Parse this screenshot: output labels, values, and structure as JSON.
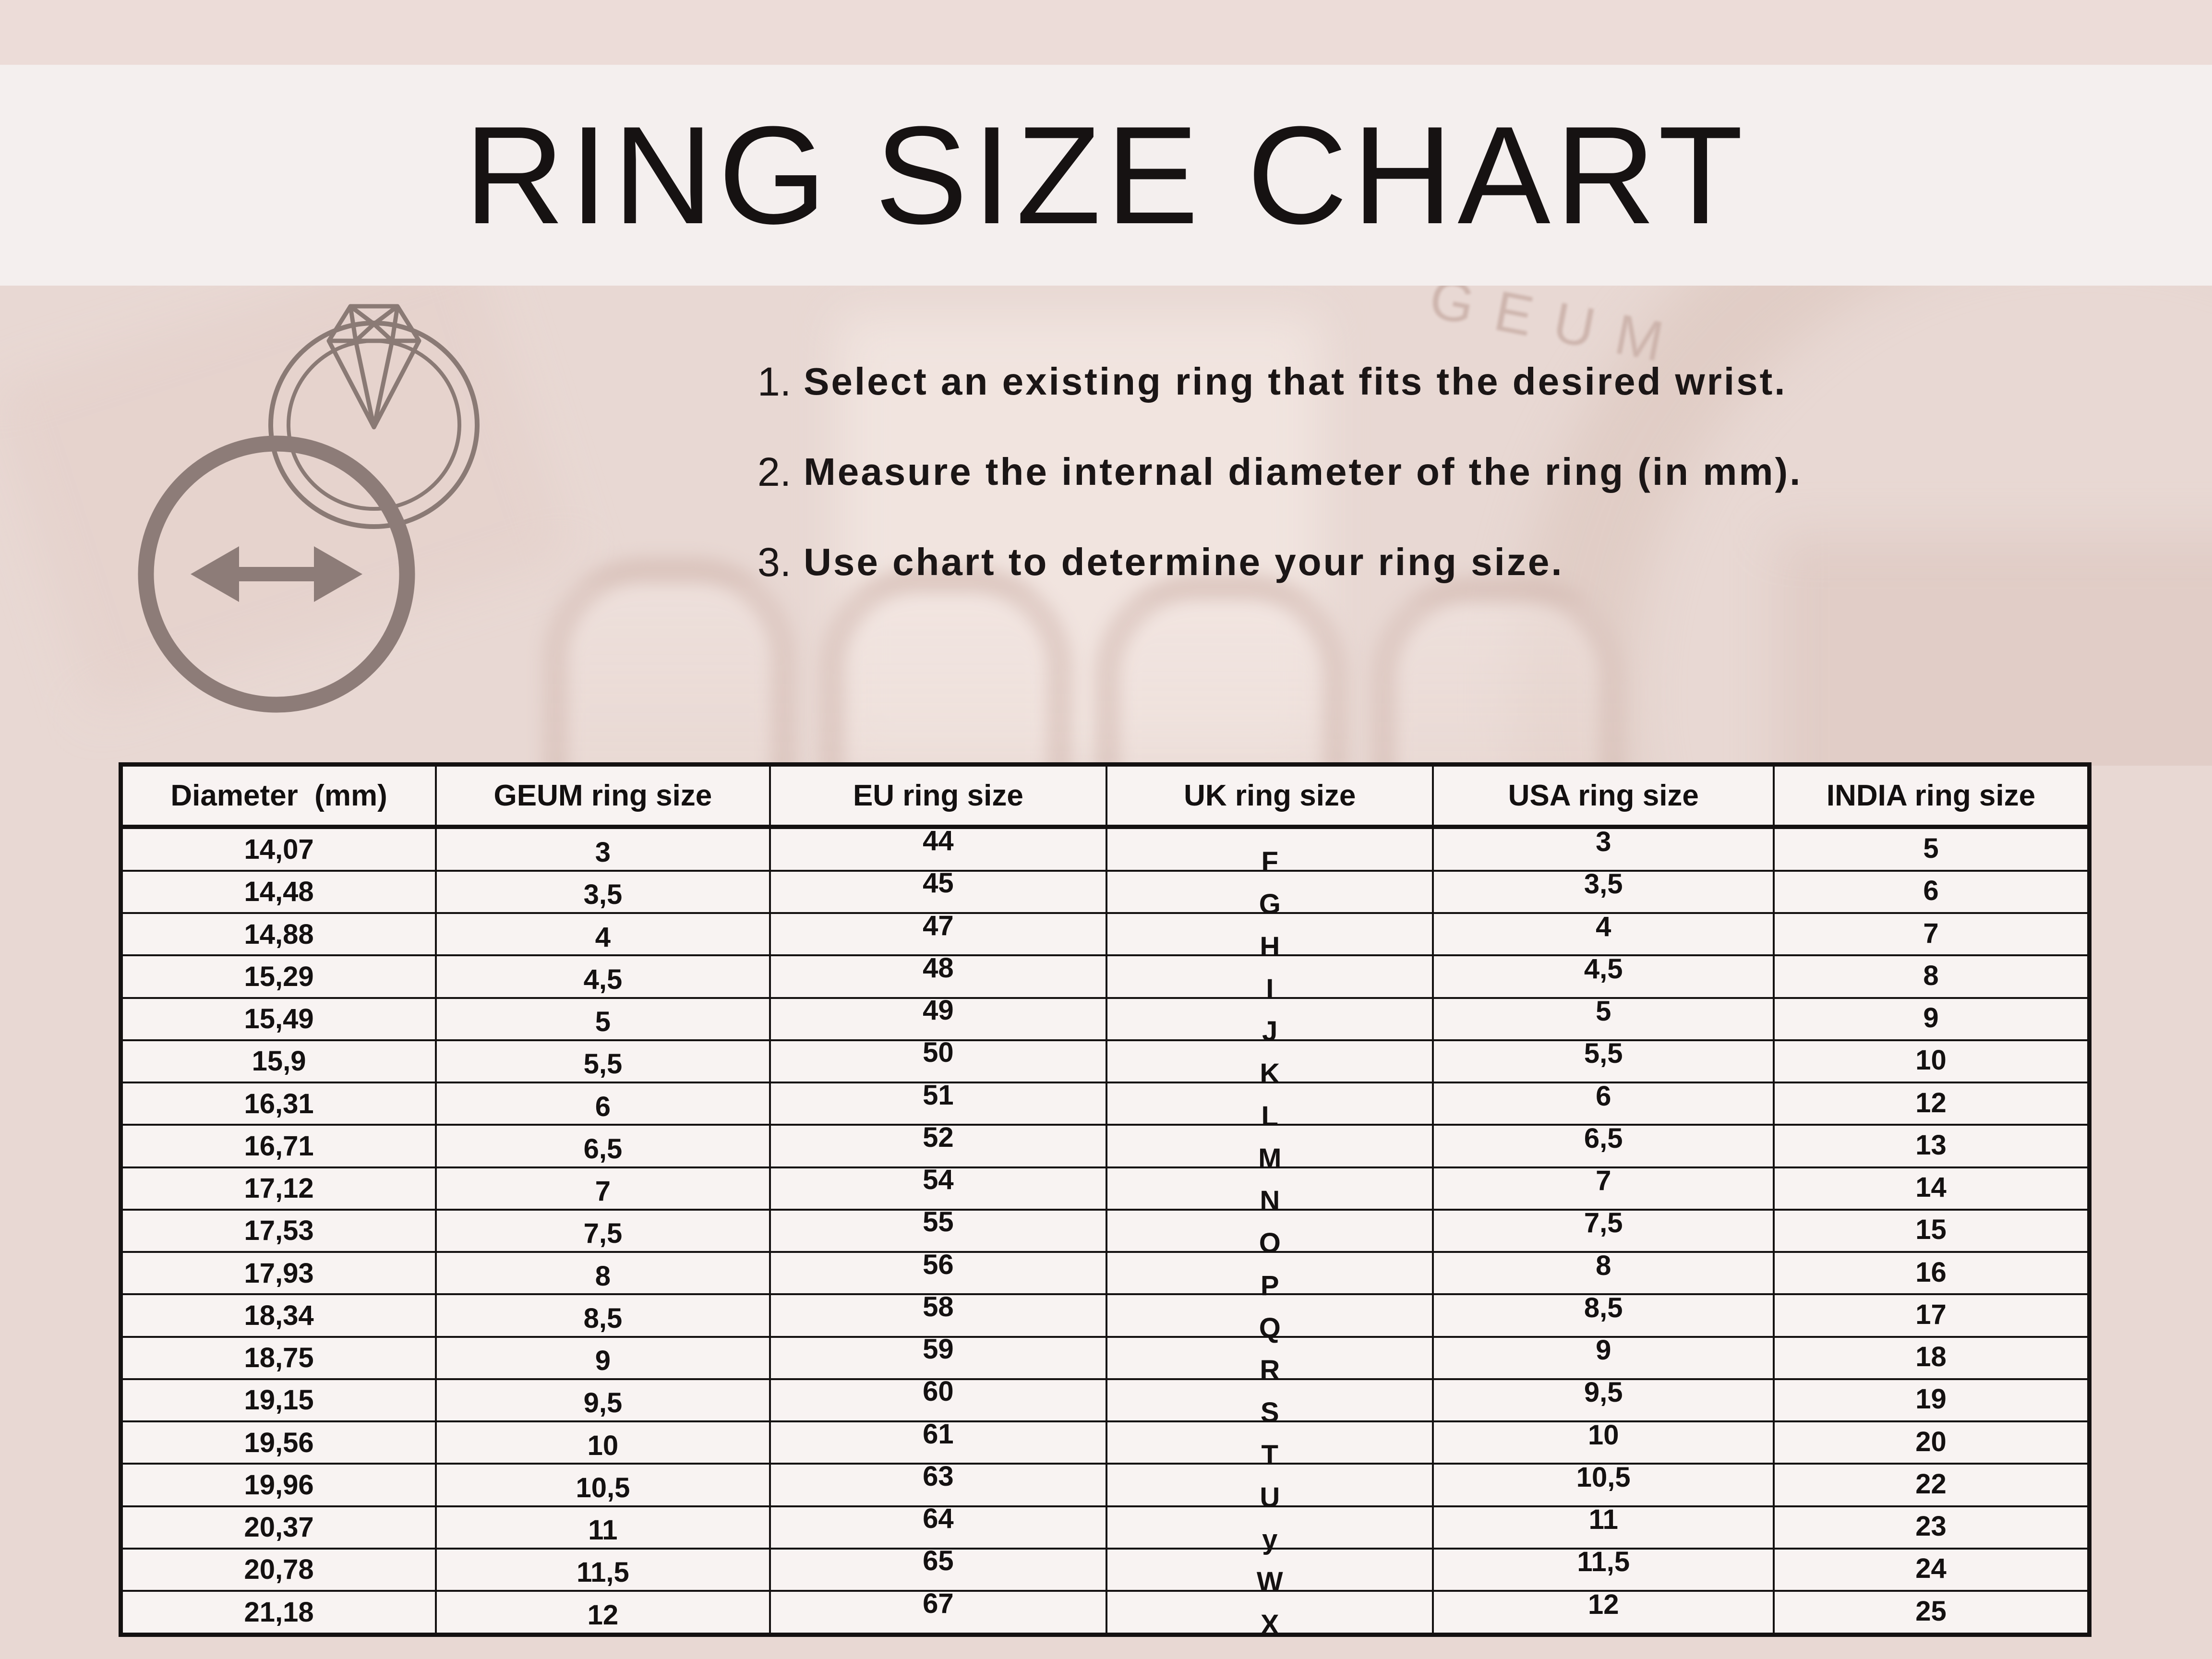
{
  "title": "RING SIZE CHART",
  "watermark": "GEUM",
  "instructions": [
    {
      "num": "1.",
      "text": "Select an existing ring that fits the desired wrist."
    },
    {
      "num": "2.",
      "text": "Measure the internal diameter of the ring (in mm)."
    },
    {
      "num": "3.",
      "text": "Use chart to determine your ring size."
    }
  ],
  "icons": [
    {
      "name": "diamond-ring-icon",
      "meaning": "outline of a ring with a diamond"
    },
    {
      "name": "diameter-circle-icon",
      "meaning": "circle representing the ring band"
    },
    {
      "name": "diameter-arrow-icon",
      "meaning": "double-headed arrow showing internal diameter measurement"
    }
  ],
  "colors": {
    "top_strip": "#ecdcd8",
    "title_band": "#f4efee",
    "page_background": "#e8d8d3",
    "table_background": "#f8f3f2",
    "table_border": "#141111",
    "text": "#171313",
    "icon": "#8d7c78",
    "watermark": "#c9afa7"
  },
  "table": {
    "columns": [
      "Diameter  (mm)",
      "GEUM ring size",
      "EU ring size",
      "UK ring size",
      "USA ring size",
      "INDIA ring size"
    ],
    "rows": [
      [
        "14,07",
        "3",
        "44",
        "F",
        "3",
        "5"
      ],
      [
        "14,48",
        "3,5",
        "45",
        "G",
        "3,5",
        "6"
      ],
      [
        "14,88",
        "4",
        "47",
        "H",
        "4",
        "7"
      ],
      [
        "15,29",
        "4,5",
        "48",
        "I",
        "4,5",
        "8"
      ],
      [
        "15,49",
        "5",
        "49",
        "J",
        "5",
        "9"
      ],
      [
        "15,9",
        "5,5",
        "50",
        "K",
        "5,5",
        "10"
      ],
      [
        "16,31",
        "6",
        "51",
        "L",
        "6",
        "12"
      ],
      [
        "16,71",
        "6,5",
        "52",
        "M",
        "6,5",
        "13"
      ],
      [
        "17,12",
        "7",
        "54",
        "N",
        "7",
        "14"
      ],
      [
        "17,53",
        "7,5",
        "55",
        "O",
        "7,5",
        "15"
      ],
      [
        "17,93",
        "8",
        "56",
        "P",
        "8",
        "16"
      ],
      [
        "18,34",
        "8,5",
        "58",
        "Q",
        "8,5",
        "17"
      ],
      [
        "18,75",
        "9",
        "59",
        "R",
        "9",
        "18"
      ],
      [
        "19,15",
        "9,5",
        "60",
        "S",
        "9,5",
        "19"
      ],
      [
        "19,56",
        "10",
        "61",
        "T",
        "10",
        "20"
      ],
      [
        "19,96",
        "10,5",
        "63",
        "U",
        "10,5",
        "22"
      ],
      [
        "20,37",
        "11",
        "64",
        "y",
        "11",
        "23"
      ],
      [
        "20,78",
        "11,5",
        "65",
        "W",
        "11,5",
        "24"
      ],
      [
        "21,18",
        "12",
        "67",
        "X",
        "12",
        "25"
      ]
    ]
  }
}
